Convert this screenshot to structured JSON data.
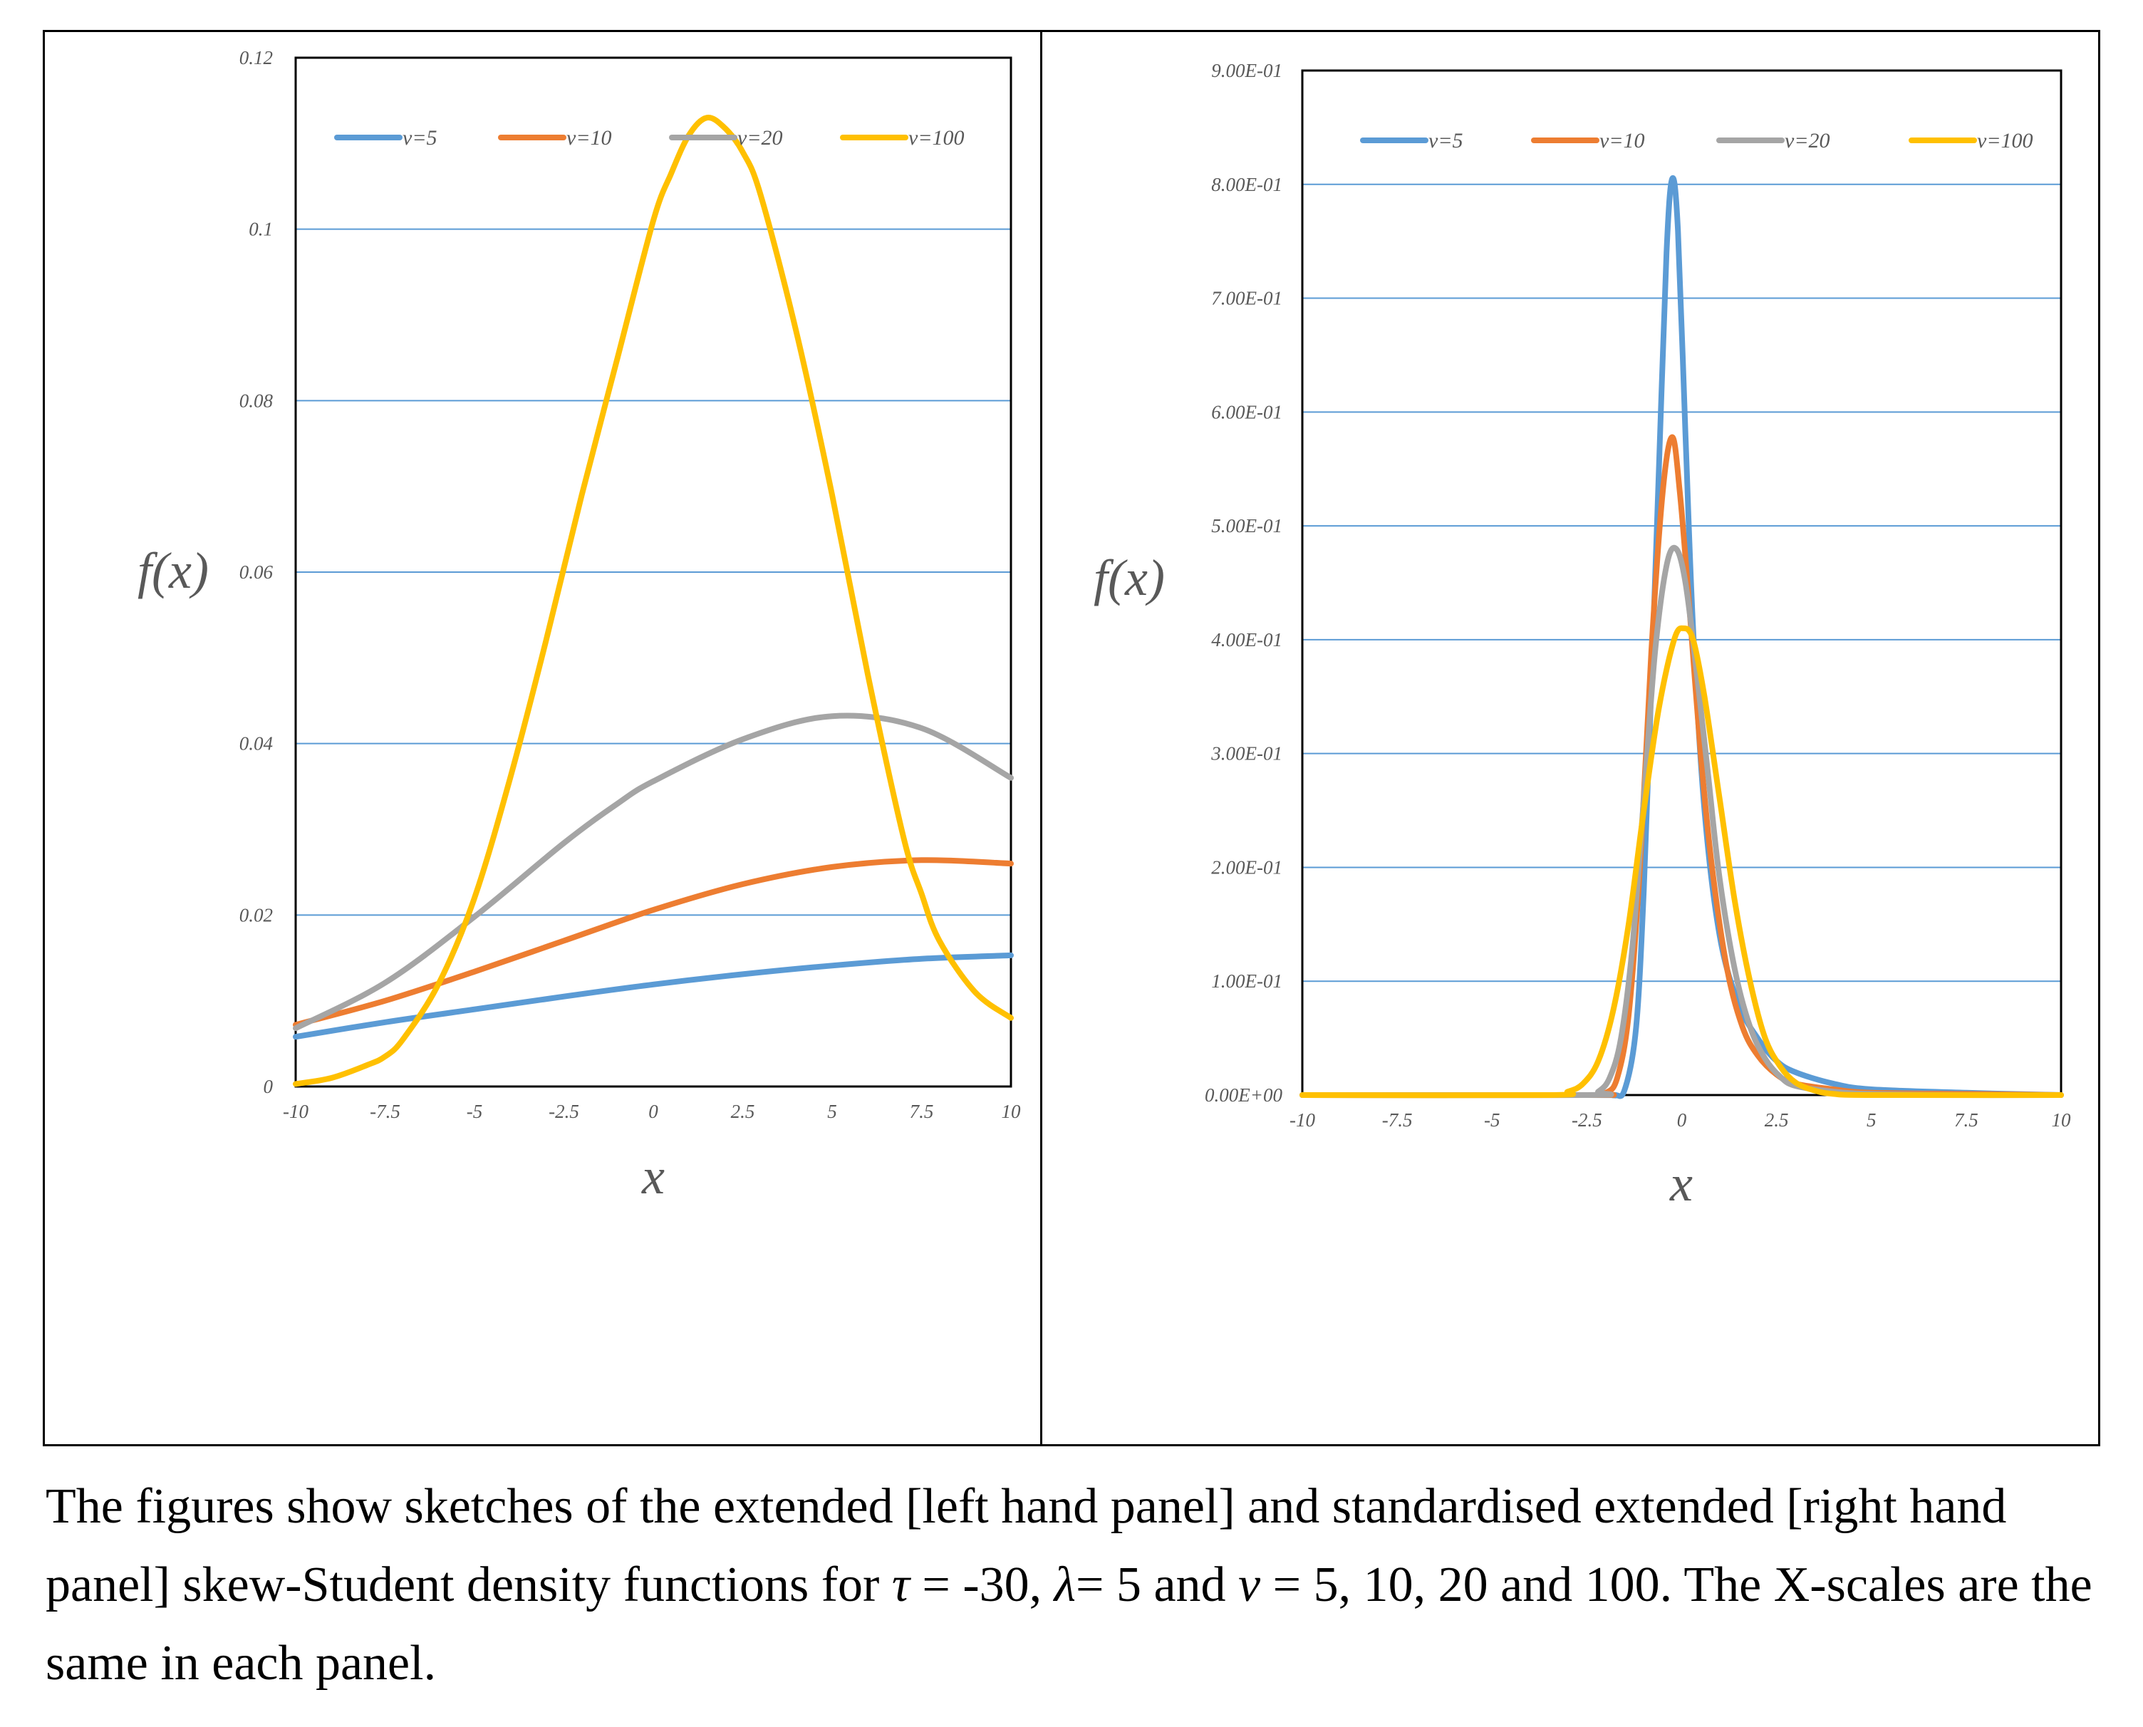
{
  "chart_data": [
    {
      "type": "line",
      "panel": "left",
      "title": "",
      "xlabel": "x",
      "ylabel": "f(x)",
      "xlim": [
        -10,
        10
      ],
      "ylim": [
        0,
        0.12
      ],
      "xticks": [
        "-10",
        "-7.5",
        "-5",
        "-2.5",
        "0",
        "2.5",
        "5",
        "7.5",
        "10"
      ],
      "xtick_values": [
        -10,
        -7.5,
        -5,
        -2.5,
        0,
        2.5,
        5,
        7.5,
        10
      ],
      "yticks": [
        "0",
        "0.02",
        "0.04",
        "0.06",
        "0.08",
        "0.1",
        "0.12"
      ],
      "ytick_values": [
        0,
        0.02,
        0.04,
        0.06,
        0.08,
        0.1,
        0.12
      ],
      "grid": true,
      "legend_position": "top",
      "series": [
        {
          "name": "ν=5",
          "color": "#5b9bd5",
          "x": [
            -10,
            -7.5,
            -5,
            -2.5,
            0,
            2.5,
            5,
            7.5,
            10
          ],
          "y": [
            0.0058,
            0.0075,
            0.009,
            0.0105,
            0.0119,
            0.0131,
            0.0141,
            0.0149,
            0.0153
          ]
        },
        {
          "name": "ν=10",
          "color": "#ed7d31",
          "x": [
            -10,
            -7.5,
            -5,
            -2.5,
            0,
            2.5,
            5,
            7.5,
            10
          ],
          "y": [
            0.0072,
            0.01,
            0.0134,
            0.017,
            0.0206,
            0.0236,
            0.0256,
            0.0264,
            0.026
          ]
        },
        {
          "name": "ν=20",
          "color": "#a5a5a5",
          "x": [
            -10,
            -7.5,
            -5,
            -2.5,
            -1,
            0,
            2.5,
            5,
            7.5,
            10
          ],
          "y": [
            0.0068,
            0.0121,
            0.0198,
            0.0284,
            0.033,
            0.0356,
            0.0405,
            0.0432,
            0.0418,
            0.036
          ]
        },
        {
          "name": "ν=100",
          "color": "#ffc000",
          "x": [
            -10,
            -9,
            -8,
            -7.5,
            -7,
            -6,
            -5,
            -4,
            -3,
            -2,
            -1,
            0,
            0.5,
            1,
            1.5,
            2,
            2.5,
            3,
            4,
            5,
            6,
            7,
            7.5,
            8,
            9,
            10
          ],
          "y": [
            0.0003,
            0.001,
            0.0025,
            0.0035,
            0.0055,
            0.012,
            0.022,
            0.036,
            0.052,
            0.069,
            0.085,
            0.101,
            0.1065,
            0.111,
            0.113,
            0.1118,
            0.109,
            0.104,
            0.088,
            0.069,
            0.048,
            0.029,
            0.0225,
            0.017,
            0.011,
            0.008
          ]
        }
      ]
    },
    {
      "type": "line",
      "panel": "right",
      "title": "",
      "xlabel": "x",
      "ylabel": "f(x)",
      "xlim": [
        -10,
        10
      ],
      "ylim": [
        0,
        0.9
      ],
      "xticks": [
        "-10",
        "-7.5",
        "-5",
        "-2.5",
        "0",
        "2.5",
        "5",
        "7.5",
        "10"
      ],
      "xtick_values": [
        -10,
        -7.5,
        -5,
        -2.5,
        0,
        2.5,
        5,
        7.5,
        10
      ],
      "yticks": [
        "0.00E+00",
        "1.00E-01",
        "2.00E-01",
        "3.00E-01",
        "4.00E-01",
        "5.00E-01",
        "6.00E-01",
        "7.00E-01",
        "8.00E-01",
        "9.00E-01"
      ],
      "ytick_values": [
        0,
        0.1,
        0.2,
        0.3,
        0.4,
        0.5,
        0.6,
        0.7,
        0.8,
        0.9
      ],
      "grid": true,
      "legend_position": "top",
      "series": [
        {
          "name": "ν=5",
          "color": "#5b9bd5",
          "x": [
            -10,
            -2.5,
            -1.8,
            -1.5,
            -1.2,
            -1.0,
            -0.8,
            -0.6,
            -0.4,
            -0.25,
            -0.1,
            0.1,
            0.3,
            0.6,
            1.0,
            1.5,
            2.0,
            2.5,
            3.0,
            4.0,
            5.0,
            7.5,
            10
          ],
          "y": [
            0,
            0,
            0,
            0.005,
            0.06,
            0.18,
            0.36,
            0.55,
            0.74,
            0.805,
            0.76,
            0.58,
            0.41,
            0.25,
            0.14,
            0.08,
            0.05,
            0.03,
            0.02,
            0.01,
            0.005,
            0.002,
            0
          ]
        },
        {
          "name": "ν=10",
          "color": "#ed7d31",
          "x": [
            -10,
            -2.5,
            -2.0,
            -1.7,
            -1.4,
            -1.1,
            -0.8,
            -0.5,
            -0.25,
            -0.05,
            0.2,
            0.5,
            0.8,
            1.2,
            1.6,
            2.0,
            2.5,
            3.0,
            4.0,
            5.0,
            7.5,
            10
          ],
          "y": [
            0,
            0,
            0.002,
            0.015,
            0.07,
            0.2,
            0.39,
            0.53,
            0.578,
            0.53,
            0.43,
            0.3,
            0.2,
            0.11,
            0.06,
            0.035,
            0.018,
            0.01,
            0.005,
            0.002,
            0.001,
            0
          ]
        },
        {
          "name": "ν=20",
          "color": "#a5a5a5",
          "x": [
            -10,
            -2.5,
            -2.2,
            -1.9,
            -1.6,
            -1.3,
            -1.0,
            -0.7,
            -0.4,
            -0.15,
            0.1,
            0.4,
            0.7,
            1.0,
            1.4,
            1.8,
            2.2,
            2.6,
            3.0,
            4.0,
            5.0,
            7.5,
            10
          ],
          "y": [
            0,
            0,
            0.003,
            0.015,
            0.05,
            0.13,
            0.26,
            0.39,
            0.465,
            0.48,
            0.45,
            0.37,
            0.28,
            0.19,
            0.11,
            0.06,
            0.032,
            0.016,
            0.008,
            0.003,
            0.001,
            0,
            0
          ]
        },
        {
          "name": "ν=100",
          "color": "#ffc000",
          "x": [
            -10,
            -3.5,
            -3.0,
            -2.6,
            -2.2,
            -1.8,
            -1.4,
            -1.0,
            -0.6,
            -0.2,
            0.05,
            0.3,
            0.6,
            1.0,
            1.4,
            1.8,
            2.2,
            2.6,
            3.0,
            3.5,
            4.0,
            5.0,
            10
          ],
          "y": [
            0,
            0,
            0.003,
            0.01,
            0.03,
            0.075,
            0.15,
            0.25,
            0.34,
            0.4,
            0.41,
            0.4,
            0.35,
            0.26,
            0.17,
            0.1,
            0.05,
            0.025,
            0.011,
            0.004,
            0.001,
            0,
            0
          ]
        }
      ]
    }
  ],
  "caption": {
    "part1": "The figures show sketches of the extended [left hand panel] and standardised extended [right hand panel] skew-Student density functions for ",
    "tau_sym": "τ",
    "part2": " = -30,  ",
    "lambda_sym": "λ",
    "part3": "= 5 and ",
    "nu_sym": "ν",
    "part4": " = 5, 10, 20 and 100. The X-scales are the same in each panel."
  }
}
